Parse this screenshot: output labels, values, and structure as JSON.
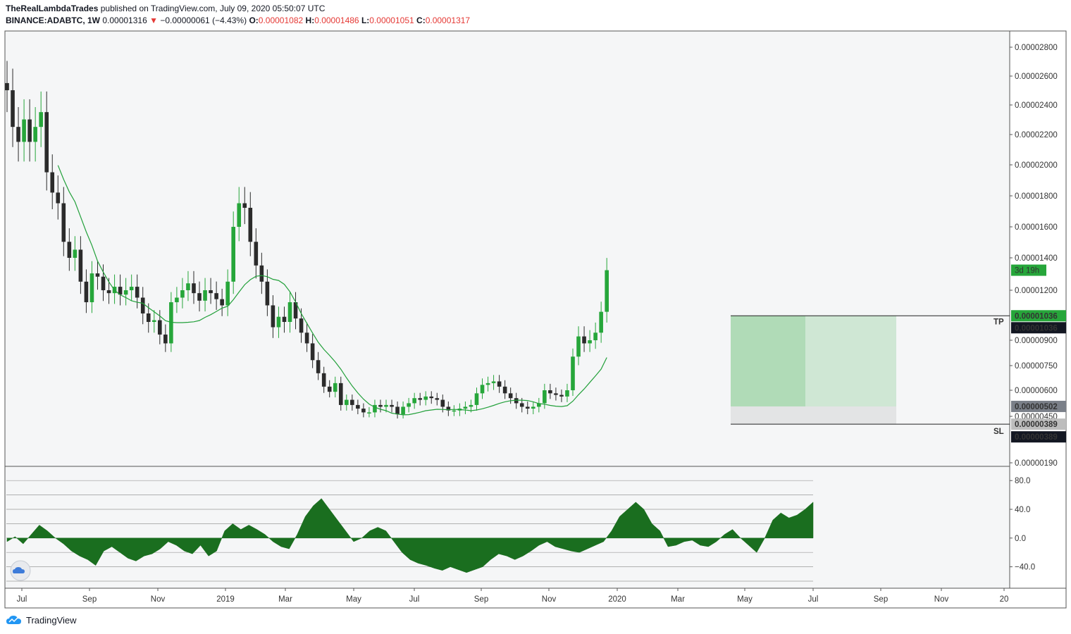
{
  "header": {
    "author": "TheRealLambdaTrades",
    "published": "published on TradingView.com, July 09, 2020 05:50:07 UTC",
    "symbol": "BINANCE:ADABTC, 1W",
    "last": "0.00001316",
    "change_arrow": "▼",
    "change": "−0.00000061 (−4.43%)",
    "o_label": "O:",
    "o": "0.00001082",
    "h_label": "H:",
    "h": "0.00001486",
    "l_label": "L:",
    "l": "0.00001051",
    "c_label": "C:",
    "c": "0.00001317"
  },
  "footer": {
    "brand": "TradingView",
    "logo_icon": "tradingview-cloud-icon"
  },
  "colors": {
    "up": "#26a63a",
    "down": "#2b2b2b",
    "ma": "#22a03a",
    "osc": "#1a6e1f",
    "profit_zone": "rgba(38,166,58,0.18)",
    "loss_zone": "rgba(180,180,180,0.18)"
  },
  "chart_data": {
    "type": "candlestick",
    "price_scale": "log",
    "y_ticks": [
      "0.00002800",
      "0.00002600",
      "0.00002400",
      "0.00002200",
      "0.00002000",
      "0.00001800",
      "0.00001600",
      "0.00001400",
      "0.00001200",
      "0.00000900",
      "0.00000750",
      "0.00000600",
      "0.00000450",
      "0.00000190"
    ],
    "x_ticks": [
      "Jul",
      "Sep",
      "Nov",
      "2019",
      "Mar",
      "May",
      "Jul",
      "Sep",
      "Nov",
      "2020",
      "Mar",
      "May",
      "Jul",
      "Sep",
      "Nov",
      "20"
    ],
    "price_labels": [
      {
        "text": "0.00001036",
        "kind": "tp"
      },
      {
        "text": "0.00001036",
        "kind": "entry"
      },
      {
        "text": "0.00000502",
        "kind": "entry-low"
      },
      {
        "text": "0.00000389",
        "kind": "sl"
      },
      {
        "text": "0.00000389",
        "kind": "sl-dark"
      }
    ],
    "countdown": "3d 19h",
    "position_labels": {
      "tp": "TP",
      "sl": "SL"
    },
    "position": {
      "entry": 5.02e-06,
      "take_profit": 1.036e-05,
      "stop_loss": 3.89e-06
    },
    "oscillator": {
      "ticks": [
        "80.0",
        "40.0",
        "0.0",
        "−40.0"
      ],
      "values": [
        -5,
        2,
        -8,
        5,
        18,
        10,
        0,
        -8,
        -18,
        -25,
        -30,
        -38,
        -18,
        -12,
        -20,
        -28,
        -32,
        -25,
        -22,
        -15,
        -5,
        -10,
        -18,
        -22,
        -10,
        -25,
        -18,
        10,
        20,
        12,
        18,
        12,
        5,
        -5,
        -12,
        -15,
        5,
        30,
        45,
        55,
        40,
        25,
        10,
        -5,
        0,
        10,
        15,
        10,
        -5,
        -20,
        -30,
        -35,
        -38,
        -42,
        -45,
        -40,
        -44,
        -48,
        -44,
        -40,
        -30,
        -22,
        -25,
        -30,
        -25,
        -18,
        -10,
        -5,
        -12,
        -15,
        -18,
        -20,
        -15,
        -10,
        -5,
        10,
        30,
        40,
        50,
        40,
        20,
        10,
        -12,
        -10,
        -5,
        -3,
        -10,
        -12,
        -5,
        5,
        12,
        0,
        -10,
        -20,
        0,
        25,
        35,
        28,
        32,
        40,
        50
      ],
      "range": [
        -60,
        90
      ]
    },
    "candles": [
      {
        "o": 2.5e-05,
        "h": 2.5e-05,
        "l": 2e-05,
        "c": 2.5e-05,
        "date": "Jul"
      }
    ]
  }
}
